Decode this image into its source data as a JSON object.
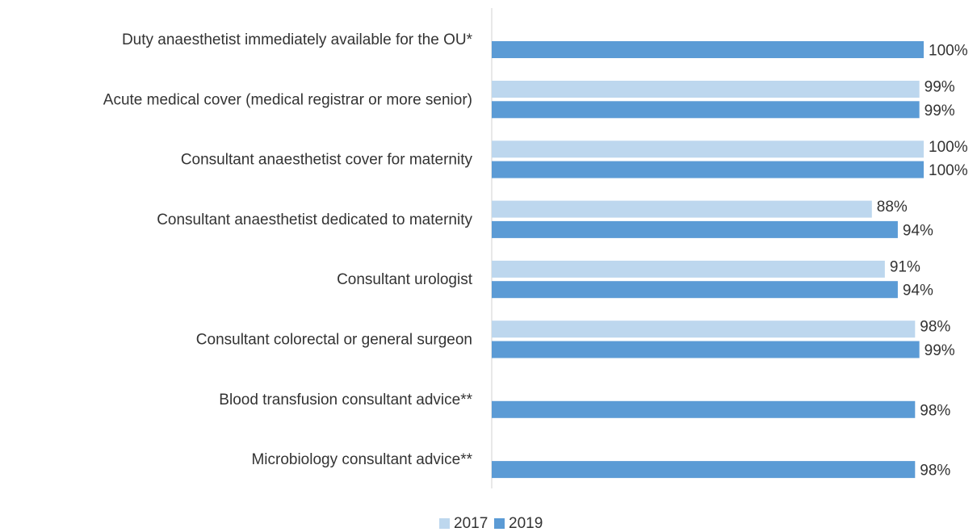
{
  "chart_data": {
    "type": "hbar",
    "categories": [
      "Duty anaesthetist immediately available for the OU*",
      "Acute medical cover (medical registrar or more senior)",
      "Consultant anaesthetist cover for maternity",
      "Consultant anaesthetist dedicated to maternity",
      "Consultant urologist",
      "Consultant colorectal or general surgeon",
      "Blood transfusion consultant advice**",
      "Microbiology consultant advice**"
    ],
    "series": [
      {
        "name": "2017",
        "color": "#bdd7ee",
        "values": [
          null,
          99,
          100,
          88,
          91,
          98,
          null,
          null
        ],
        "value_labels": [
          null,
          "99%",
          "100%",
          "88%",
          "91%",
          "98%",
          null,
          null
        ]
      },
      {
        "name": "2019",
        "color": "#5b9bd5",
        "values": [
          100,
          99,
          100,
          94,
          94,
          99,
          98,
          98
        ],
        "value_labels": [
          "100%",
          "99%",
          "100%",
          "94%",
          "94%",
          "99%",
          "98%",
          "98%"
        ]
      }
    ],
    "xlim": [
      0,
      100
    ],
    "legend": "bottom"
  }
}
